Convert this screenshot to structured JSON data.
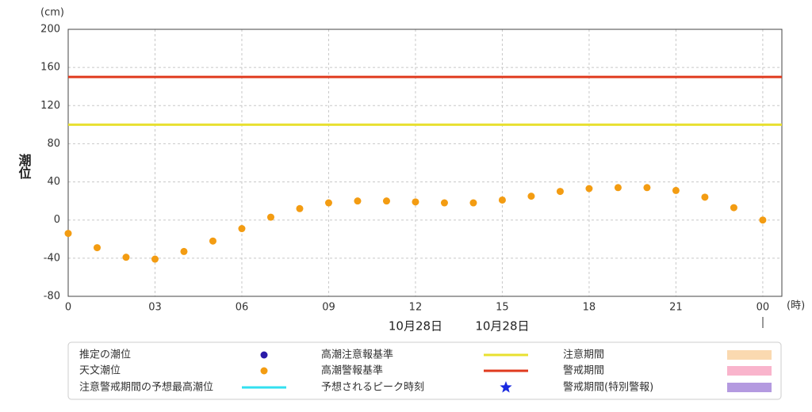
{
  "chart_data": {
    "type": "scatter",
    "y_label": "潮位",
    "y_unit": "(cm)",
    "x_unit": "(時)",
    "x": [
      0,
      1,
      2,
      3,
      4,
      5,
      6,
      7,
      8,
      9,
      10,
      11,
      12,
      13,
      14,
      15,
      16,
      17,
      18,
      19,
      20,
      21,
      22,
      23,
      24
    ],
    "series": [
      {
        "name": "天文潮位",
        "color": "#f39c12",
        "values": [
          -14,
          -29,
          -39,
          -41,
          -33,
          -22,
          -9,
          3,
          12,
          18,
          20,
          20,
          19,
          18,
          18,
          21,
          25,
          30,
          33,
          34,
          34,
          31,
          24,
          13,
          0
        ]
      }
    ],
    "thresholds": [
      {
        "name": "高潮注意報基準",
        "value": 100,
        "color": "#e8e030"
      },
      {
        "name": "高潮警報基準",
        "value": 150,
        "color": "#e03a1e"
      }
    ],
    "legend_items": [
      {
        "name": "推定の潮位",
        "color": "#2a1aa8",
        "symbol": "dot"
      },
      {
        "name": "注意警戒期間の予想最高潮位",
        "color": "#33e0f0",
        "symbol": "line"
      },
      {
        "name": "予想されるピーク時刻",
        "color": "#1a2ae0",
        "symbol": "star"
      },
      {
        "name": "注意期間",
        "color": "#fad9b0",
        "symbol": "rect"
      },
      {
        "name": "警戒期間",
        "color": "#f9b4cc",
        "symbol": "rect"
      },
      {
        "name": "警戒期間(特別警報)",
        "color": "#b49ae0",
        "symbol": "rect"
      }
    ],
    "date_labels": [
      {
        "x": 12,
        "label": "10月28日"
      },
      {
        "x": 15,
        "label": "10月28日"
      }
    ],
    "xlim": [
      0,
      24.66
    ],
    "xticks": [
      0,
      {
        "value": 3,
        "label": "03"
      },
      {
        "value": 6,
        "label": "06"
      },
      {
        "value": 9,
        "label": "09"
      },
      12,
      15,
      18,
      21,
      {
        "value": 24,
        "label": "00"
      }
    ],
    "ylim": [
      -80,
      200
    ],
    "yticks": [
      -80,
      -40,
      0,
      40,
      80,
      120,
      160,
      200
    ],
    "grid": true
  }
}
